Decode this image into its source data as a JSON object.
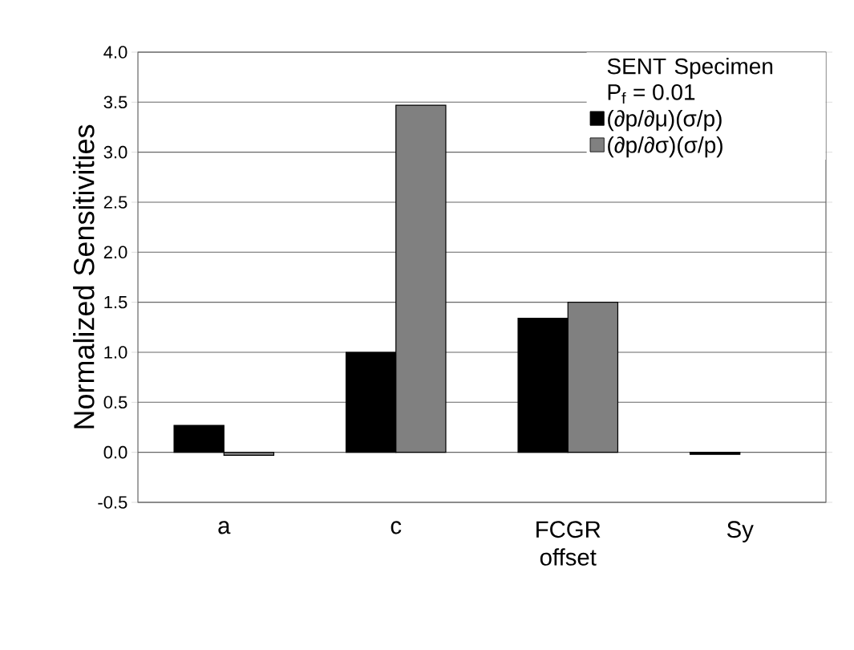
{
  "chart_data": {
    "type": "bar",
    "ylabel": "Normalized Sensitivities",
    "legend_title": "SENT Specimen",
    "annotations": [
      "P$_{f}$ = 0.01"
    ],
    "categories": [
      "a",
      "c",
      "FCGR offset",
      "Sy"
    ],
    "series": [
      {
        "name": "(∂p/∂μ)(σ/p)",
        "color": "#000000",
        "values": [
          0.27,
          1.0,
          1.34,
          -0.02
        ]
      },
      {
        "name": "(∂p/∂σ)(σ/p)",
        "color": "#808080",
        "values": [
          -0.03,
          3.47,
          1.5,
          null
        ]
      }
    ],
    "ylim": [
      -0.5,
      4.0
    ],
    "yticks": [
      {
        "value": -0.5,
        "label": "-0.5"
      },
      {
        "value": 0,
        "label": "0.0"
      },
      {
        "value": 0.5,
        "label": "0.5"
      },
      {
        "value": 1,
        "label": "1.0"
      },
      {
        "value": 1.5,
        "label": "1.5"
      },
      {
        "value": 2,
        "label": "2.0"
      },
      {
        "value": 2.5,
        "label": "2.5"
      },
      {
        "value": 3,
        "label": "3.0"
      },
      {
        "value": 3.5,
        "label": "3.5"
      },
      {
        "value": 4,
        "label": "4.0"
      }
    ],
    "grid": "y",
    "legend": "top right"
  }
}
